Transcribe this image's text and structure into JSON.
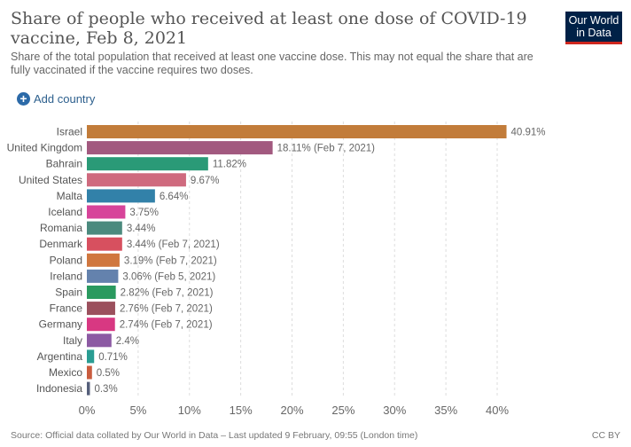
{
  "header": {
    "title": "Share of people who received at least one dose of COVID-19 vaccine, Feb 8, 2021",
    "subtitle": "Share of the total population that received at least one vaccine dose. This may not equal the share that are fully vaccinated if the vaccine requires two doses.",
    "logo_line1": "Our World",
    "logo_line2": "in Data"
  },
  "controls": {
    "add_country_label": "Add country",
    "add_icon": "plus-circle-icon"
  },
  "chart_data": {
    "type": "bar",
    "orientation": "horizontal",
    "title": "Share of people who received at least one dose of COVID-19 vaccine, Feb 8, 2021",
    "xlabel": "",
    "ylabel": "",
    "xlim": [
      0,
      40
    ],
    "xticks": [
      "0%",
      "5%",
      "10%",
      "15%",
      "20%",
      "25%",
      "30%",
      "35%",
      "40%"
    ],
    "xtick_values": [
      0,
      5,
      10,
      15,
      20,
      25,
      30,
      35,
      40
    ],
    "grid": true,
    "categories": [
      "Israel",
      "United Kingdom",
      "Bahrain",
      "United States",
      "Malta",
      "Iceland",
      "Romania",
      "Denmark",
      "Poland",
      "Ireland",
      "Spain",
      "France",
      "Germany",
      "Italy",
      "Argentina",
      "Mexico",
      "Indonesia"
    ],
    "values": [
      40.91,
      18.11,
      11.82,
      9.67,
      6.64,
      3.75,
      3.44,
      3.44,
      3.19,
      3.06,
      2.82,
      2.76,
      2.74,
      2.4,
      0.71,
      0.5,
      0.3
    ],
    "labels": [
      "40.91%",
      "18.11% (Feb 7, 2021)",
      "11.82%",
      "9.67%",
      "6.64%",
      "3.75%",
      "3.44%",
      "3.44% (Feb 7, 2021)",
      "3.19% (Feb 7, 2021)",
      "3.06% (Feb 5, 2021)",
      "2.82% (Feb 7, 2021)",
      "2.76% (Feb 7, 2021)",
      "2.74% (Feb 7, 2021)",
      "2.4%",
      "0.71%",
      "0.5%",
      "0.3%"
    ],
    "colors": [
      "#c27c3a",
      "#a2597f",
      "#2a9a77",
      "#cf6a7e",
      "#3281a9",
      "#d7449a",
      "#4b8a7e",
      "#d7505f",
      "#d0773f",
      "#6482ad",
      "#2a9a5f",
      "#9b505d",
      "#d83882",
      "#8c5aa3",
      "#2a9d93",
      "#c95c3e",
      "#555f7a"
    ]
  },
  "footer": {
    "source": "Source: Official data collated by Our World in Data – Last updated 9 February, 09:55 (London time)",
    "license": "CC BY"
  }
}
